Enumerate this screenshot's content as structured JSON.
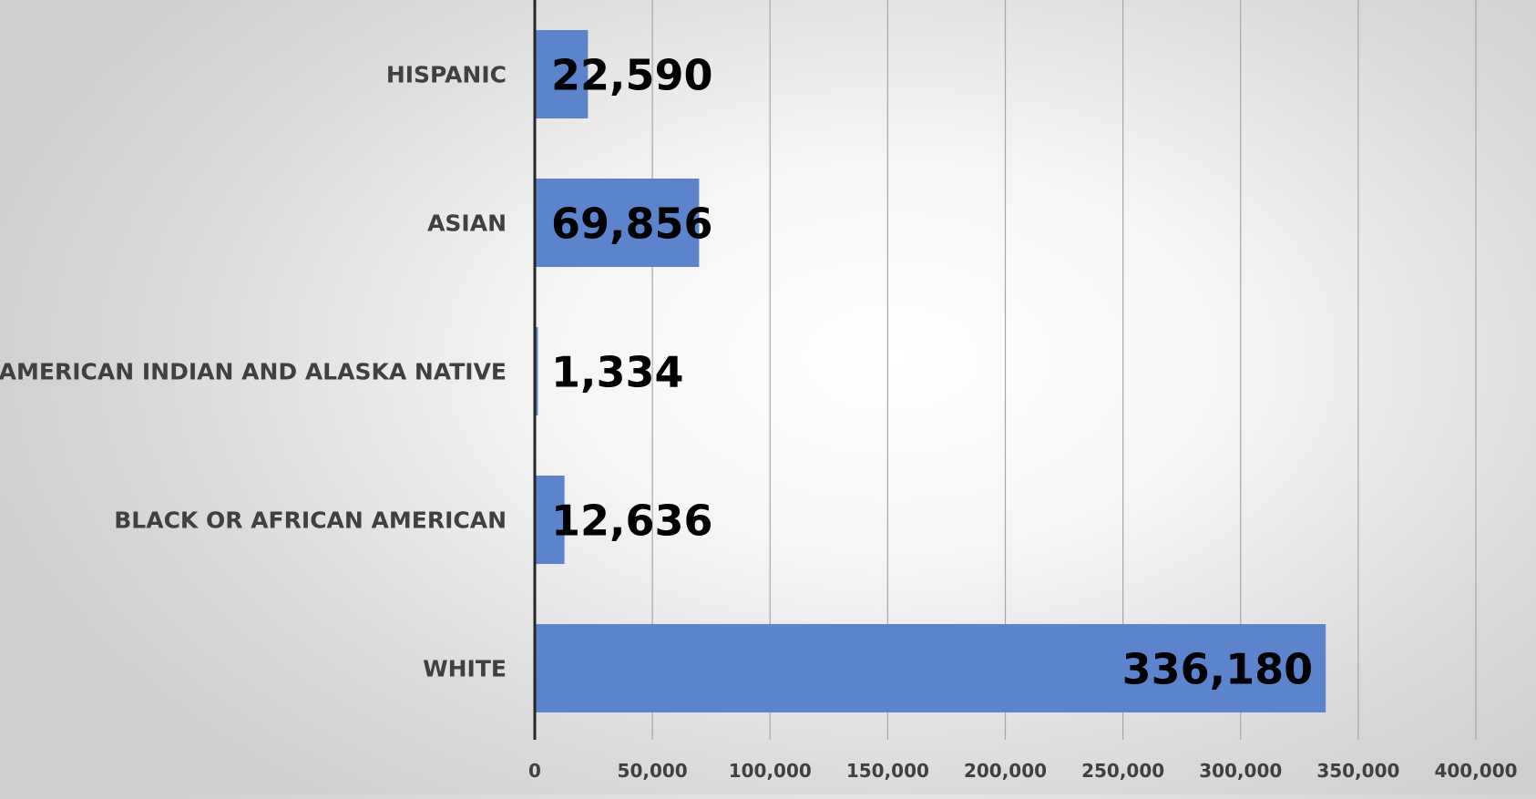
{
  "chart_data": {
    "type": "bar",
    "orientation": "horizontal",
    "categories": [
      "HISPANIC",
      "ASIAN",
      "AMERICAN INDIAN AND ALASKA NATIVE",
      "BLACK OR AFRICAN AMERICAN",
      "WHITE"
    ],
    "values": [
      22590,
      69856,
      1334,
      12636,
      336180
    ],
    "data_labels": [
      "22,590",
      "69,856",
      "1,334",
      "12,636",
      "336,180"
    ],
    "xlim": [
      0,
      400000
    ],
    "x_ticks": [
      0,
      50000,
      100000,
      150000,
      200000,
      250000,
      300000,
      350000,
      400000
    ],
    "x_tick_labels": [
      "0",
      "50,000",
      "100,000",
      "150,000",
      "200,000",
      "250,000",
      "300,000",
      "350,000",
      "400,000"
    ],
    "title": "",
    "xlabel": "",
    "ylabel": "",
    "grid": "vertical",
    "legend": "none",
    "bar_color": "#5b84cc",
    "gridline_color": "#a6a6a6",
    "axis_color": "#262626"
  }
}
